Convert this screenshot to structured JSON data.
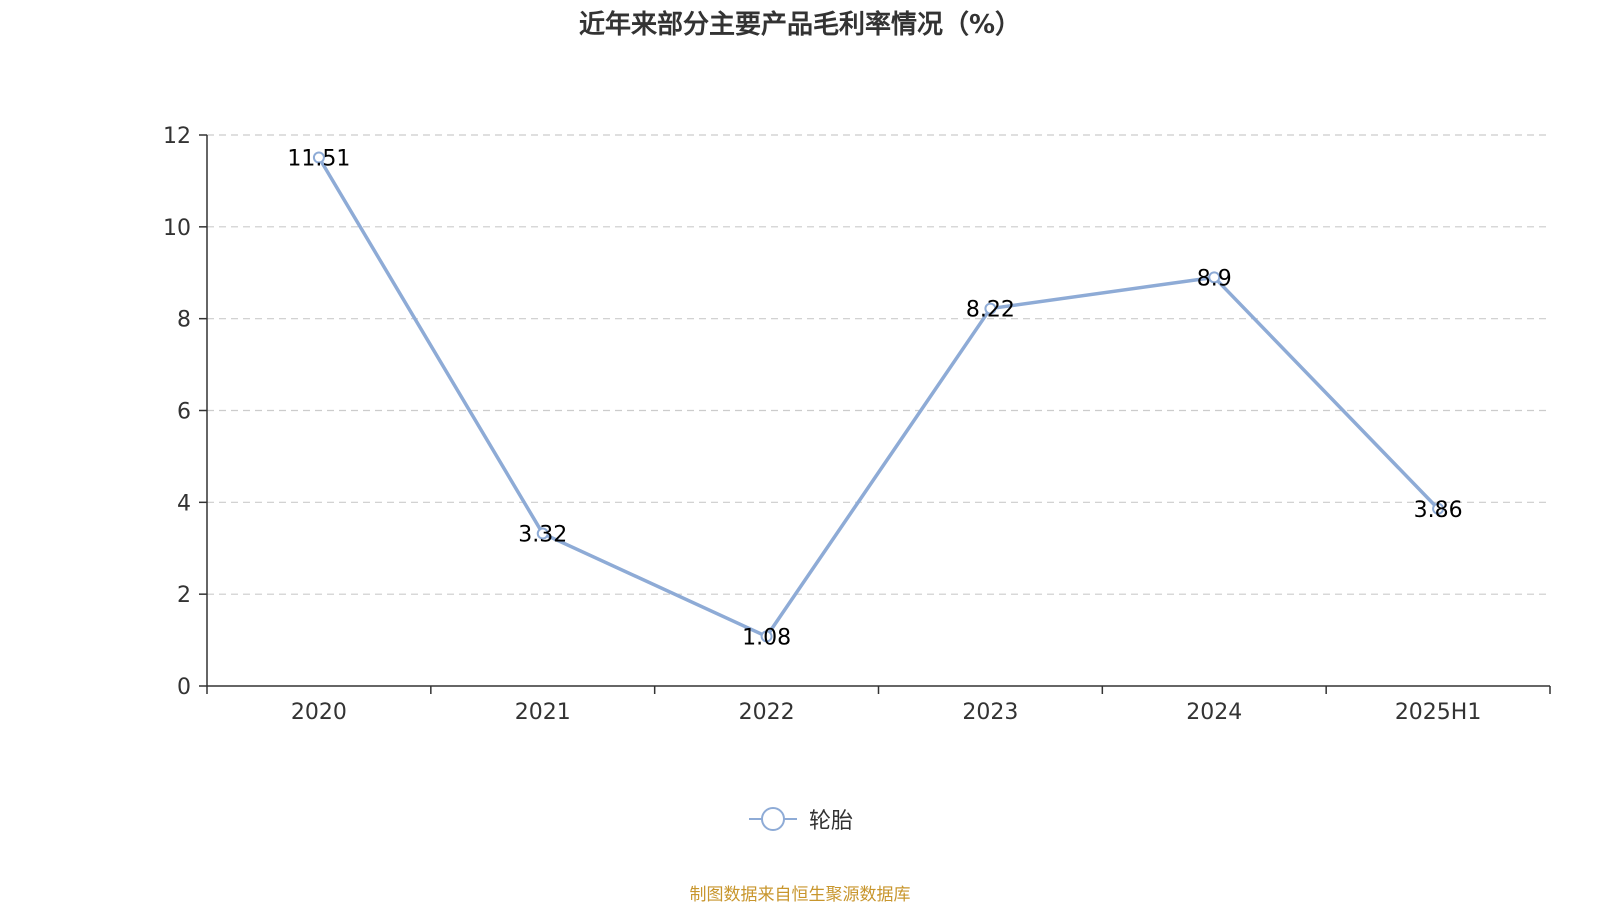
{
  "title": "近年来部分主要产品毛利率情况（%）",
  "source": "制图数据来自恒生聚源数据库",
  "colors": {
    "series": "#8eabd6",
    "title": "#333333",
    "axis": "#333333",
    "grid": "#cccccc",
    "source": "#c8962d",
    "label": "#000000"
  },
  "chart_data": {
    "type": "line",
    "title": "近年来部分主要产品毛利率情况（%）",
    "xlabel": "",
    "ylabel": "",
    "categories": [
      "2020",
      "2021",
      "2022",
      "2023",
      "2024",
      "2025H1"
    ],
    "ylim": [
      0,
      12
    ],
    "yticks": [
      0,
      2,
      4,
      6,
      8,
      10,
      12
    ],
    "grid": "horizontal dashed",
    "legend_position": "bottom-center",
    "series": [
      {
        "name": "轮胎",
        "values": [
          11.51,
          3.32,
          1.08,
          8.22,
          8.9,
          3.86
        ],
        "labels": [
          "11.51",
          "3.32",
          "1.08",
          "8.22",
          "8.9",
          "3.86"
        ]
      }
    ]
  }
}
